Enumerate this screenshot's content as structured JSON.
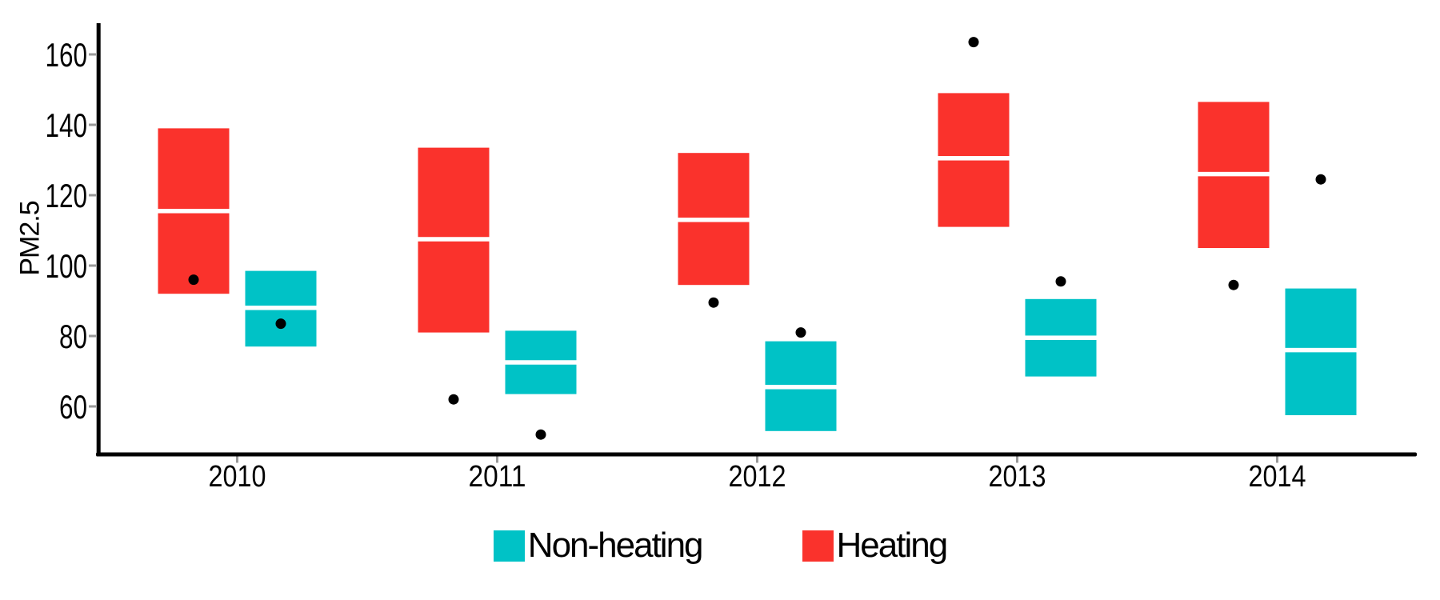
{
  "chart_data": {
    "type": "boxplot",
    "style": "crossbar boxes (no whiskers) with black point markers",
    "title": "",
    "xlabel": "",
    "ylabel": "PM2.5",
    "categories": [
      "2010",
      "2011",
      "2012",
      "2013",
      "2014"
    ],
    "y_ticks": [
      60,
      80,
      100,
      120,
      140,
      160
    ],
    "ylim": [
      46,
      169
    ],
    "grid": "off",
    "legend_position": "bottom-center",
    "point_color": "#000000",
    "median_line_color": "#ffffff",
    "axis_color": "#000000",
    "tick_mark_color": "#999999",
    "series": [
      {
        "name": "Heating",
        "color": "#FA322C",
        "side": "left",
        "upper": [
          139,
          133.5,
          132,
          149,
          146.5
        ],
        "median": [
          115.5,
          107.5,
          113,
          130.5,
          126
        ],
        "lower": [
          92,
          81,
          94.5,
          111,
          105
        ],
        "points": [
          96,
          62,
          89.5,
          163.5,
          94.5
        ]
      },
      {
        "name": "Non-heating",
        "color": "#00C2C6",
        "side": "right",
        "upper": [
          98.5,
          81.5,
          78.5,
          90.5,
          93.5
        ],
        "median": [
          88,
          72.5,
          65.5,
          79.5,
          76
        ],
        "lower": [
          77,
          63.5,
          53,
          68.5,
          57.5
        ],
        "points": [
          83.5,
          52,
          81,
          95.5,
          124.5
        ]
      }
    ],
    "legend": [
      {
        "label": "Non-heating",
        "color": "#00C2C6"
      },
      {
        "label": "Heating",
        "color": "#FA322C"
      }
    ]
  }
}
